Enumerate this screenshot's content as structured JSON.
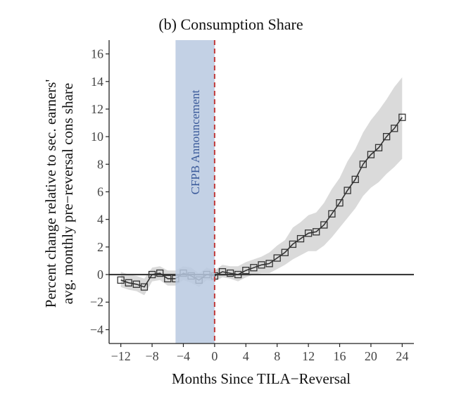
{
  "colors": {
    "band": "#d3d3d3",
    "line": "#333333",
    "marker_stroke": "#333333",
    "shade": "#b9c9e0",
    "shade_text": "#3a5a9a",
    "vline": "#c03a3a",
    "zero_line": "#3a3a3a"
  },
  "chart_data": {
    "type": "line",
    "title": "(b) Consumption Share",
    "xlabel": "Months Since TILA−Reversal",
    "ylabel_lines": [
      "Percent change relative to sec. earners'",
      "avg. monthly pre−reversal cons share"
    ],
    "xlim": [
      -13.5,
      25.5
    ],
    "ylim": [
      -5,
      17
    ],
    "x_ticks": [
      -12,
      -8,
      -4,
      0,
      4,
      8,
      12,
      16,
      20,
      24
    ],
    "x_tick_labels": [
      "−12",
      "−8",
      "−4",
      "0",
      "4",
      "8",
      "12",
      "16",
      "20",
      "24"
    ],
    "y_ticks": [
      -4,
      -2,
      0,
      2,
      4,
      6,
      8,
      10,
      12,
      14,
      16
    ],
    "y_tick_labels": [
      "−4",
      "−2",
      "0",
      "2",
      "4",
      "6",
      "8",
      "10",
      "12",
      "14",
      "16"
    ],
    "shaded_region": {
      "x": [
        -5,
        0
      ],
      "label": "CFPB Announcement"
    },
    "vline_x": 0,
    "hline_y": 0,
    "series": [
      {
        "x": [
          -12,
          -11,
          -10,
          -9,
          -8,
          -7,
          -6,
          -5,
          -4,
          -3,
          -2,
          -1,
          0,
          1,
          2,
          3,
          4,
          5,
          6,
          7,
          8,
          9,
          10,
          11,
          12,
          13,
          14,
          15,
          16,
          17,
          18,
          19,
          20,
          21,
          22,
          23,
          24
        ],
        "y": [
          -0.4,
          -0.6,
          -0.7,
          -0.9,
          0.0,
          0.1,
          -0.3,
          -0.3,
          0.1,
          -0.1,
          -0.4,
          0.0,
          -0.1,
          0.2,
          0.1,
          0.0,
          0.3,
          0.5,
          0.7,
          0.8,
          1.2,
          1.6,
          2.2,
          2.6,
          3.0,
          3.1,
          3.6,
          4.4,
          5.2,
          6.1,
          6.9,
          8.0,
          8.7,
          9.2,
          10.0,
          10.6,
          11.4
        ],
        "ci_lower": [
          -0.9,
          -1.1,
          -1.2,
          -1.5,
          -0.5,
          -0.4,
          -0.8,
          -0.8,
          -0.4,
          -0.6,
          -0.9,
          -0.4,
          -0.5,
          -0.2,
          -0.3,
          -0.5,
          -0.2,
          0.0,
          0.1,
          0.1,
          0.4,
          0.7,
          1.1,
          1.4,
          1.7,
          1.7,
          2.1,
          2.7,
          3.4,
          4.1,
          4.8,
          5.7,
          6.3,
          6.7,
          7.3,
          7.8,
          8.4
        ],
        "ci_upper": [
          0.2,
          0.0,
          -0.1,
          -0.3,
          0.5,
          0.6,
          0.3,
          0.3,
          0.6,
          0.5,
          0.1,
          0.5,
          0.3,
          0.7,
          0.6,
          0.6,
          0.9,
          1.1,
          1.3,
          1.6,
          2.1,
          2.5,
          3.4,
          3.8,
          4.3,
          4.5,
          5.2,
          6.2,
          7.0,
          8.2,
          9.1,
          10.3,
          11.2,
          11.9,
          12.7,
          13.6,
          14.3
        ]
      }
    ]
  }
}
